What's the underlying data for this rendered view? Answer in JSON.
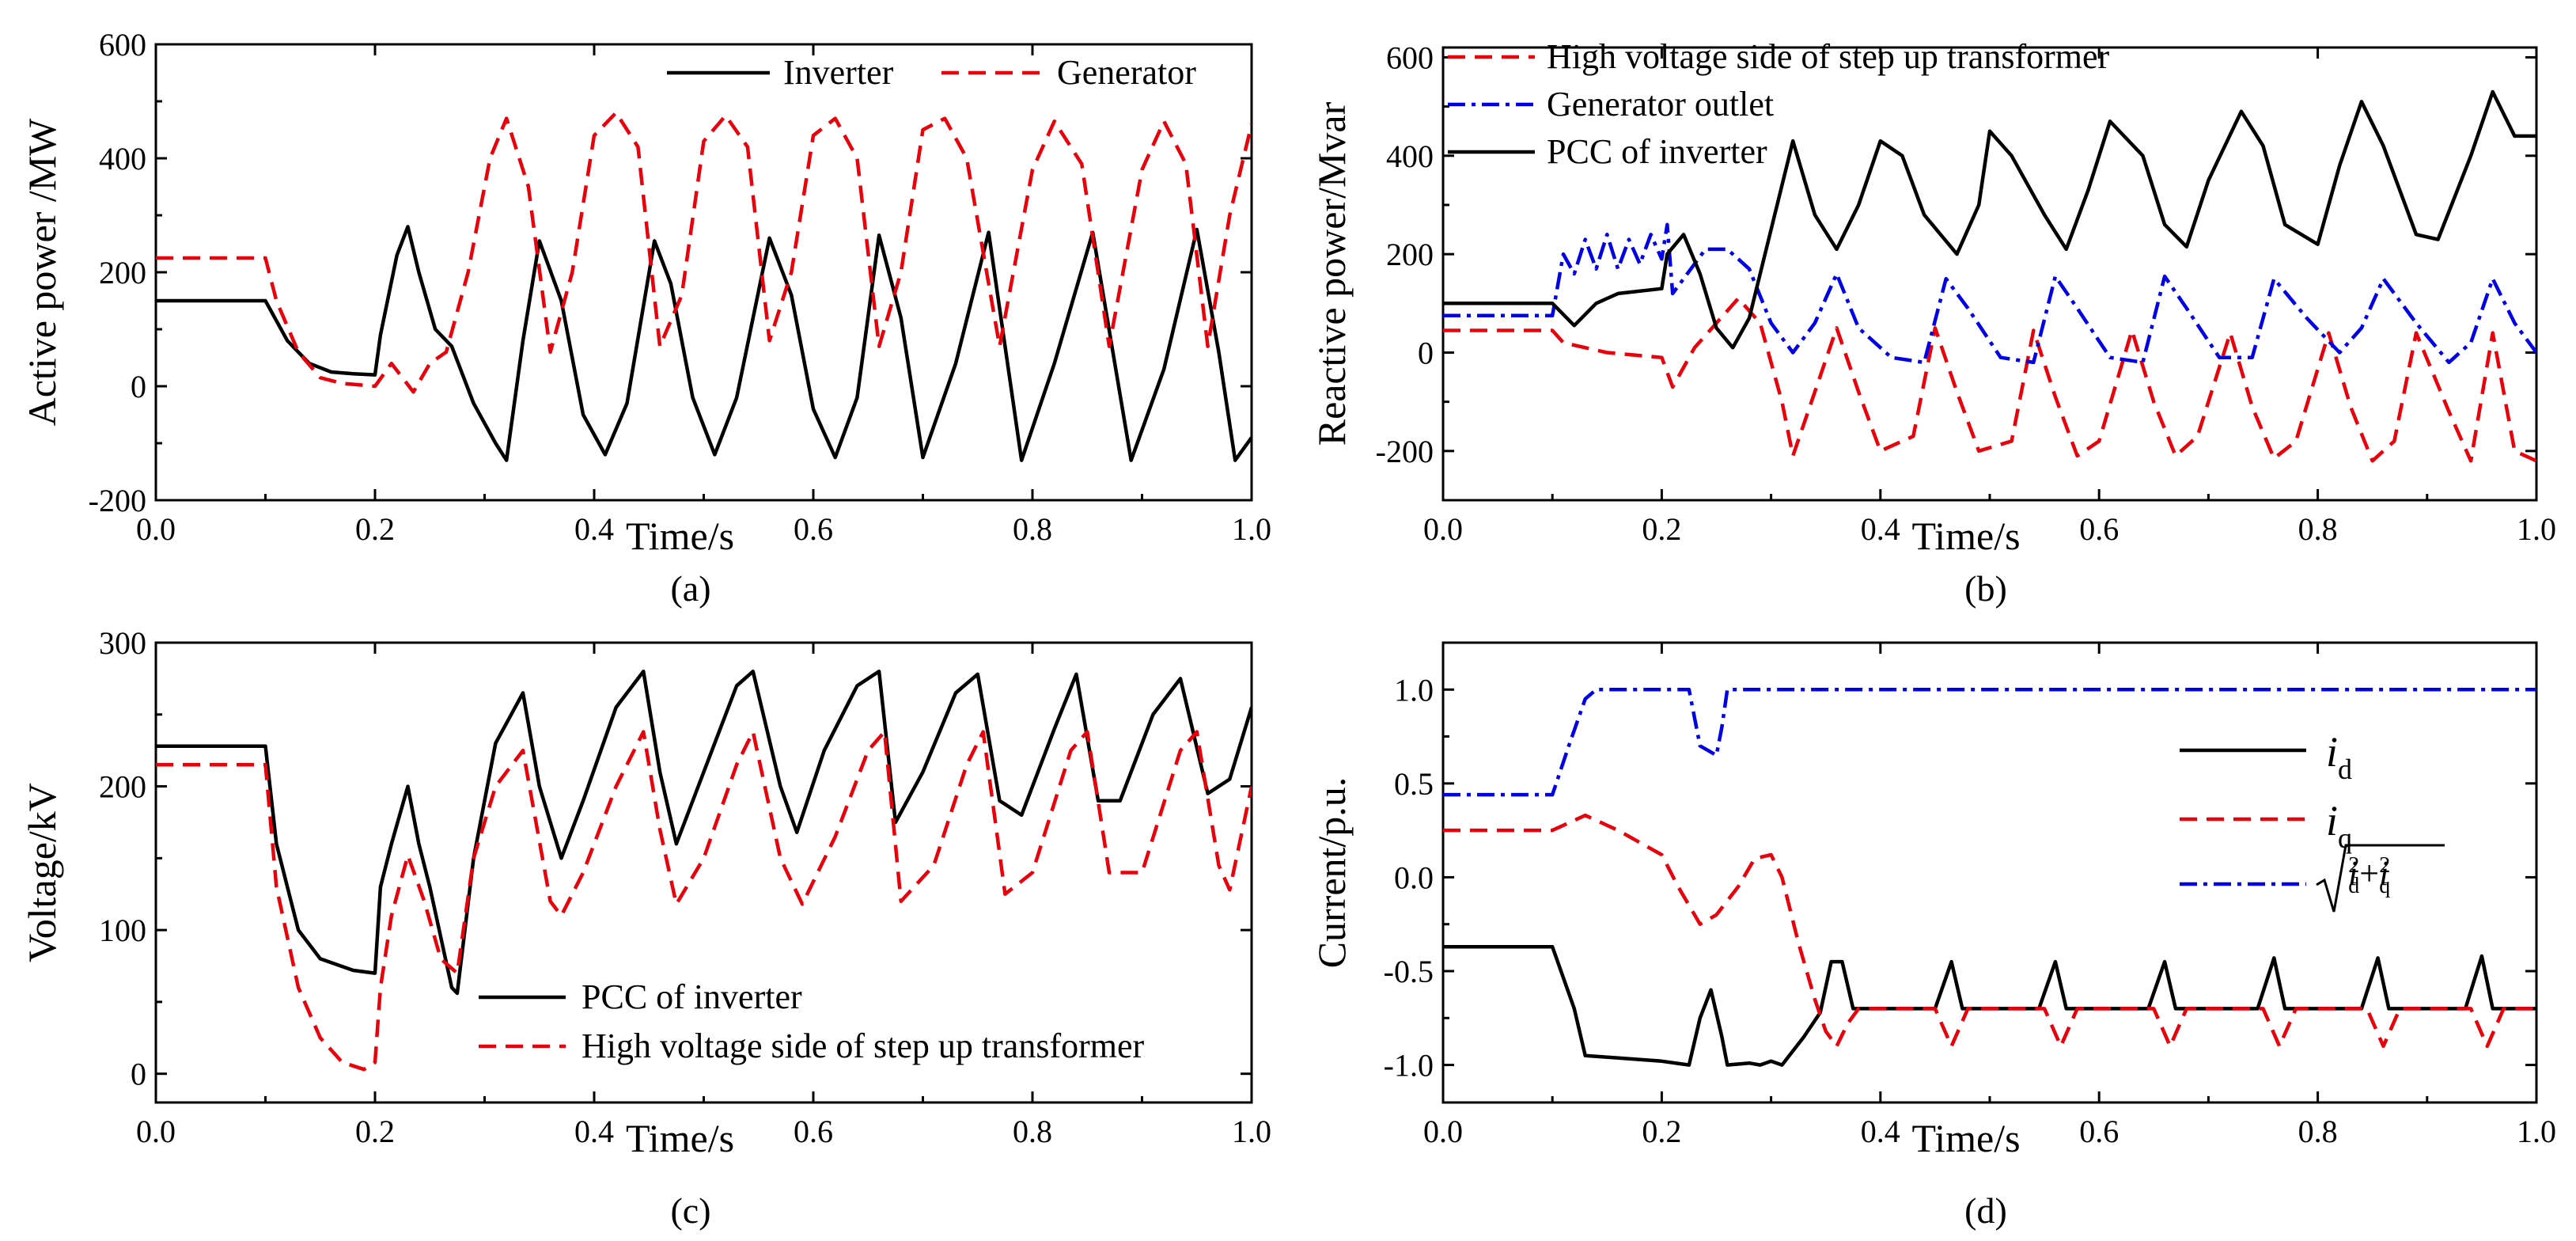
{
  "chart_data": [
    {
      "panel": "(a)",
      "type": "line",
      "xlabel": "Time/s",
      "ylabel": "Active power /MW",
      "xlim": [
        0,
        1.0
      ],
      "ylim": [
        -200,
        600
      ],
      "xticks": [
        "0.0",
        "0.2",
        "0.4",
        "0.6",
        "0.8",
        "1.0"
      ],
      "yticks": [
        "-200",
        "0",
        "200",
        "400",
        "600"
      ],
      "legend_position": "top-right",
      "series": [
        {
          "name": "Inverter",
          "color": "#000000",
          "dash": "solid",
          "x": [
            0,
            0.1,
            0.12,
            0.14,
            0.16,
            0.18,
            0.2,
            0.205,
            0.22,
            0.23,
            0.24,
            0.255,
            0.27,
            0.29,
            0.31,
            0.32,
            0.335,
            0.35,
            0.37,
            0.39,
            0.41,
            0.43,
            0.455,
            0.47,
            0.49,
            0.51,
            0.53,
            0.56,
            0.58,
            0.6,
            0.62,
            0.64,
            0.66,
            0.68,
            0.7,
            0.73,
            0.76,
            0.79,
            0.82,
            0.855,
            0.89,
            0.92,
            0.95,
            0.97,
            0.985,
            1.0
          ],
          "y": [
            150,
            150,
            80,
            40,
            25,
            22,
            20,
            90,
            230,
            280,
            200,
            100,
            70,
            -30,
            -100,
            -130,
            80,
            255,
            150,
            -50,
            -120,
            -30,
            255,
            180,
            -20,
            -120,
            -20,
            260,
            160,
            -40,
            -125,
            -20,
            265,
            120,
            -125,
            40,
            270,
            -130,
            40,
            270,
            -130,
            30,
            275,
            60,
            -130,
            -90
          ]
        },
        {
          "name": "Generator",
          "color": "#e8000b",
          "dash": "dashed",
          "x": [
            0,
            0.1,
            0.11,
            0.13,
            0.15,
            0.17,
            0.2,
            0.215,
            0.235,
            0.25,
            0.265,
            0.285,
            0.305,
            0.32,
            0.34,
            0.36,
            0.38,
            0.4,
            0.42,
            0.44,
            0.46,
            0.48,
            0.5,
            0.52,
            0.54,
            0.56,
            0.58,
            0.6,
            0.62,
            0.64,
            0.66,
            0.68,
            0.7,
            0.72,
            0.74,
            0.77,
            0.8,
            0.82,
            0.845,
            0.87,
            0.9,
            0.92,
            0.94,
            0.96,
            0.98,
            1.0
          ],
          "y": [
            225,
            225,
            150,
            60,
            15,
            5,
            0,
            40,
            -10,
            40,
            60,
            200,
            400,
            470,
            350,
            60,
            200,
            440,
            480,
            420,
            70,
            160,
            430,
            475,
            420,
            80,
            200,
            440,
            470,
            400,
            70,
            200,
            450,
            470,
            400,
            70,
            380,
            465,
            390,
            70,
            380,
            465,
            390,
            70,
            300,
            460
          ]
        }
      ]
    },
    {
      "panel": "(b)",
      "type": "line",
      "xlabel": "Time/s",
      "ylabel": "Reactive power/Mvar",
      "xlim": [
        0,
        1.0
      ],
      "ylim": [
        -300,
        600
      ],
      "xticks": [
        "0.0",
        "0.2",
        "0.4",
        "0.6",
        "0.8",
        "1.0"
      ],
      "yticks": [
        "-200",
        "0",
        "200",
        "400",
        "600"
      ],
      "legend_position": "top-left",
      "series": [
        {
          "name": "High voltage side of step up transformer",
          "color": "#e8000b",
          "dash": "dashed",
          "x": [
            0,
            0.1,
            0.11,
            0.15,
            0.2,
            0.21,
            0.23,
            0.27,
            0.29,
            0.31,
            0.32,
            0.34,
            0.36,
            0.38,
            0.4,
            0.43,
            0.45,
            0.47,
            0.49,
            0.52,
            0.54,
            0.56,
            0.58,
            0.6,
            0.63,
            0.65,
            0.67,
            0.69,
            0.72,
            0.74,
            0.76,
            0.78,
            0.81,
            0.83,
            0.85,
            0.87,
            0.89,
            0.92,
            0.94,
            0.96,
            0.98,
            1.0
          ],
          "y": [
            45,
            45,
            20,
            0,
            -10,
            -70,
            10,
            110,
            60,
            -100,
            -210,
            -80,
            50,
            -80,
            -200,
            -170,
            50,
            -80,
            -200,
            -180,
            45,
            -90,
            -210,
            -180,
            45,
            -100,
            -210,
            -170,
            40,
            -110,
            -215,
            -180,
            40,
            -110,
            -220,
            -180,
            40,
            -120,
            -220,
            40,
            -200,
            -220
          ]
        },
        {
          "name": "Generator outlet",
          "color": "#0000e6",
          "dash": "dashdot",
          "x": [
            0,
            0.1,
            0.11,
            0.12,
            0.13,
            0.14,
            0.15,
            0.16,
            0.17,
            0.18,
            0.19,
            0.2,
            0.205,
            0.21,
            0.22,
            0.24,
            0.26,
            0.28,
            0.3,
            0.32,
            0.34,
            0.36,
            0.38,
            0.41,
            0.44,
            0.46,
            0.48,
            0.51,
            0.54,
            0.56,
            0.58,
            0.61,
            0.64,
            0.66,
            0.68,
            0.71,
            0.74,
            0.76,
            0.79,
            0.82,
            0.84,
            0.86,
            0.89,
            0.92,
            0.94,
            0.96,
            0.98,
            1.0
          ],
          "y": [
            75,
            75,
            200,
            160,
            230,
            170,
            240,
            170,
            230,
            180,
            240,
            190,
            260,
            120,
            150,
            210,
            210,
            170,
            60,
            0,
            60,
            160,
            50,
            -10,
            -20,
            150,
            90,
            -10,
            -20,
            155,
            90,
            -10,
            -20,
            155,
            90,
            -10,
            -10,
            150,
            70,
            0,
            50,
            150,
            60,
            -20,
            20,
            150,
            60,
            0
          ]
        },
        {
          "name": "PCC of inverter",
          "color": "#000000",
          "dash": "solid",
          "x": [
            0,
            0.1,
            0.12,
            0.14,
            0.16,
            0.2,
            0.205,
            0.22,
            0.235,
            0.25,
            0.265,
            0.28,
            0.3,
            0.32,
            0.34,
            0.36,
            0.38,
            0.4,
            0.42,
            0.44,
            0.47,
            0.49,
            0.5,
            0.52,
            0.55,
            0.57,
            0.59,
            0.61,
            0.64,
            0.66,
            0.68,
            0.7,
            0.73,
            0.75,
            0.77,
            0.8,
            0.82,
            0.84,
            0.86,
            0.89,
            0.91,
            0.94,
            0.96,
            0.98,
            1.0
          ],
          "y": [
            100,
            100,
            55,
            100,
            120,
            130,
            200,
            240,
            160,
            50,
            10,
            70,
            250,
            430,
            280,
            210,
            300,
            430,
            400,
            280,
            200,
            300,
            450,
            400,
            280,
            210,
            330,
            470,
            400,
            260,
            215,
            350,
            490,
            420,
            260,
            220,
            380,
            510,
            420,
            240,
            230,
            400,
            530,
            440,
            440
          ]
        }
      ]
    },
    {
      "panel": "(c)",
      "type": "line",
      "xlabel": "Time/s",
      "ylabel": "Voltage/kV",
      "xlim": [
        0,
        1.0
      ],
      "ylim": [
        -20,
        300
      ],
      "xticks": [
        "0.0",
        "0.2",
        "0.4",
        "0.6",
        "0.8",
        "1.0"
      ],
      "yticks": [
        "0",
        "100",
        "200",
        "300"
      ],
      "legend_position": "bottom-center",
      "series": [
        {
          "name": "PCC of inverter",
          "color": "#000000",
          "dash": "solid",
          "x": [
            0,
            0.1,
            0.11,
            0.13,
            0.15,
            0.18,
            0.2,
            0.205,
            0.215,
            0.23,
            0.24,
            0.25,
            0.27,
            0.275,
            0.29,
            0.31,
            0.335,
            0.35,
            0.37,
            0.39,
            0.42,
            0.445,
            0.46,
            0.475,
            0.5,
            0.53,
            0.545,
            0.57,
            0.585,
            0.61,
            0.64,
            0.66,
            0.675,
            0.7,
            0.73,
            0.75,
            0.77,
            0.79,
            0.82,
            0.84,
            0.86,
            0.88,
            0.91,
            0.935,
            0.96,
            0.98,
            1.0
          ],
          "y": [
            228,
            228,
            160,
            100,
            80,
            72,
            70,
            130,
            160,
            200,
            160,
            130,
            60,
            56,
            150,
            230,
            265,
            200,
            150,
            190,
            255,
            280,
            210,
            160,
            210,
            270,
            280,
            200,
            168,
            225,
            270,
            280,
            175,
            210,
            265,
            278,
            190,
            180,
            240,
            278,
            190,
            190,
            250,
            275,
            195,
            205,
            255
          ]
        },
        {
          "name": "High voltage side of step up transformer",
          "color": "#e8000b",
          "dash": "dashed",
          "x": [
            0,
            0.1,
            0.11,
            0.13,
            0.15,
            0.17,
            0.19,
            0.2,
            0.205,
            0.215,
            0.23,
            0.245,
            0.26,
            0.275,
            0.29,
            0.31,
            0.335,
            0.36,
            0.37,
            0.39,
            0.42,
            0.445,
            0.46,
            0.475,
            0.5,
            0.53,
            0.545,
            0.57,
            0.59,
            0.62,
            0.65,
            0.665,
            0.68,
            0.71,
            0.74,
            0.755,
            0.775,
            0.8,
            0.835,
            0.85,
            0.87,
            0.9,
            0.935,
            0.95,
            0.97,
            0.98,
            1.0
          ],
          "y": [
            215,
            215,
            130,
            60,
            25,
            8,
            3,
            8,
            60,
            110,
            152,
            120,
            80,
            70,
            150,
            200,
            225,
            120,
            110,
            140,
            200,
            238,
            170,
            118,
            150,
            215,
            238,
            150,
            118,
            165,
            225,
            238,
            120,
            145,
            215,
            238,
            125,
            140,
            225,
            238,
            140,
            140,
            225,
            238,
            145,
            128,
            200
          ]
        }
      ]
    },
    {
      "panel": "(d)",
      "type": "line",
      "xlabel": "Time/s",
      "ylabel": "Current/p.u.",
      "xlim": [
        0,
        1.0
      ],
      "ylim": [
        -1.2,
        1.2
      ],
      "xticks": [
        "0.0",
        "0.2",
        "0.4",
        "0.6",
        "0.8",
        "1.0"
      ],
      "yticks": [
        "-1.0",
        "-0.5",
        "0.0",
        "0.5",
        "1.0"
      ],
      "legend_position": "right",
      "series": [
        {
          "name": "i_d",
          "color": "#000000",
          "dash": "solid",
          "x": [
            0,
            0.1,
            0.12,
            0.13,
            0.2,
            0.225,
            0.235,
            0.245,
            0.255,
            0.26,
            0.28,
            0.29,
            0.3,
            0.31,
            0.33,
            0.345,
            0.355,
            0.365,
            0.375,
            0.385,
            0.45,
            0.465,
            0.475,
            0.545,
            0.56,
            0.57,
            0.645,
            0.66,
            0.67,
            0.745,
            0.76,
            0.77,
            0.84,
            0.855,
            0.865,
            0.935,
            0.95,
            0.96,
            1.0
          ],
          "y": [
            -0.37,
            -0.37,
            -0.7,
            -0.95,
            -0.98,
            -1.0,
            -0.75,
            -0.6,
            -0.85,
            -1.0,
            -0.99,
            -1.0,
            -0.98,
            -1.0,
            -0.85,
            -0.72,
            -0.45,
            -0.45,
            -0.7,
            -0.7,
            -0.7,
            -0.45,
            -0.7,
            -0.7,
            -0.45,
            -0.7,
            -0.7,
            -0.45,
            -0.7,
            -0.7,
            -0.43,
            -0.7,
            -0.7,
            -0.43,
            -0.7,
            -0.7,
            -0.42,
            -0.7,
            -0.7
          ]
        },
        {
          "name": "i_q",
          "color": "#e8000b",
          "dash": "dashed",
          "x": [
            0,
            0.1,
            0.13,
            0.16,
            0.2,
            0.215,
            0.235,
            0.25,
            0.27,
            0.285,
            0.3,
            0.31,
            0.325,
            0.34,
            0.35,
            0.36,
            0.37,
            0.38,
            0.45,
            0.465,
            0.48,
            0.55,
            0.565,
            0.58,
            0.65,
            0.665,
            0.68,
            0.75,
            0.765,
            0.78,
            0.845,
            0.86,
            0.875,
            0.94,
            0.955,
            0.97,
            1.0
          ],
          "y": [
            0.25,
            0.25,
            0.33,
            0.25,
            0.12,
            -0.05,
            -0.25,
            -0.2,
            -0.05,
            0.1,
            0.12,
            0.0,
            -0.35,
            -0.65,
            -0.82,
            -0.9,
            -0.78,
            -0.7,
            -0.7,
            -0.9,
            -0.7,
            -0.7,
            -0.9,
            -0.7,
            -0.7,
            -0.9,
            -0.7,
            -0.7,
            -0.9,
            -0.7,
            -0.7,
            -0.9,
            -0.7,
            -0.7,
            -0.9,
            -0.7,
            -0.7
          ]
        },
        {
          "name": "sqrt(i_d^2+i_q^2)",
          "color": "#0000e6",
          "dash": "dashdot",
          "x": [
            0,
            0.1,
            0.115,
            0.13,
            0.14,
            0.225,
            0.235,
            0.25,
            0.255,
            0.26,
            0.27,
            1.0
          ],
          "y": [
            0.44,
            0.44,
            0.7,
            0.95,
            1.0,
            1.0,
            0.7,
            0.65,
            0.8,
            1.0,
            1.0,
            1.0
          ]
        }
      ]
    }
  ],
  "legends": {
    "a": [
      "Inverter",
      "Generator"
    ],
    "b": [
      "High voltage side of step up transformer",
      "Generator outlet",
      "PCC of inverter"
    ],
    "c": [
      "PCC of inverter",
      "High voltage side of step up transformer"
    ]
  },
  "captions": [
    "(a)",
    "(b)",
    "(c)",
    "(d)"
  ]
}
